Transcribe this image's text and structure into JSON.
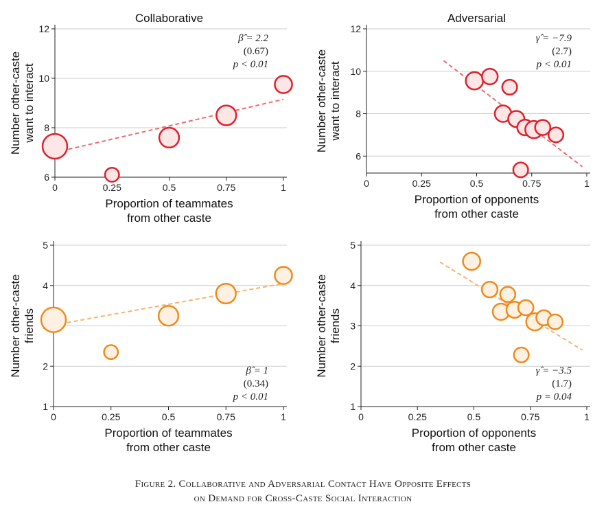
{
  "caption": {
    "line1": "Figure 2. Collaborative and Adversarial Contact Have Opposite Effects",
    "line2": "on Demand for Cross-Caste Social Interaction"
  },
  "colors": {
    "red": "#e0202a",
    "red_line": "#ee6a6e",
    "red_fill": "#fde6e6",
    "orange": "#f08a1c",
    "orange_line": "#f6b26b",
    "orange_fill": "#fff1e2",
    "grid": "#cccccc"
  },
  "chart_data": [
    {
      "type": "scatter",
      "title": "Collaborative",
      "xlabel": [
        "Proportion of teammates",
        "from other caste"
      ],
      "ylabel": [
        "Number other-caste",
        "want to interact"
      ],
      "xlim": [
        0,
        1
      ],
      "ylim": [
        6,
        12
      ],
      "xticks": [
        "0",
        "0.25",
        "0.5",
        "0.75",
        "1"
      ],
      "xtick_values": [
        0,
        0.25,
        0.5,
        0.75,
        1
      ],
      "yticks": [
        "6",
        "8",
        "10",
        "12"
      ],
      "ytick_values": [
        6,
        8,
        10,
        12
      ],
      "grid": true,
      "color": "red",
      "points": [
        {
          "x": 0,
          "y": 7.25,
          "size": 1.0
        },
        {
          "x": 0.25,
          "y": 6.1,
          "size": 0.35
        },
        {
          "x": 0.5,
          "y": 7.6,
          "size": 0.7
        },
        {
          "x": 0.75,
          "y": 8.5,
          "size": 0.7
        },
        {
          "x": 1,
          "y": 9.75,
          "size": 0.55
        }
      ],
      "fit": {
        "x": [
          0,
          1
        ],
        "y": [
          7.0,
          9.15
        ]
      },
      "stats": {
        "label": "β̂ = 2.2",
        "se": "(0.67)",
        "p": "p < 0.01",
        "position": "top-right"
      }
    },
    {
      "type": "scatter",
      "title": "Adversarial",
      "xlabel": [
        "Proportion of opponents",
        "from other caste"
      ],
      "ylabel": [
        "Number other-caste",
        "want to interact"
      ],
      "xlim": [
        0,
        1
      ],
      "ylim": [
        5.2,
        12
      ],
      "xticks": [
        "0",
        "0.25",
        "0.5",
        "0.75",
        "1"
      ],
      "xtick_values": [
        0,
        0.25,
        0.5,
        0.75,
        1
      ],
      "yticks": [
        "6",
        "8",
        "10",
        "12"
      ],
      "ytick_values": [
        6,
        8,
        10,
        12
      ],
      "grid": true,
      "color": "red",
      "points": [
        {
          "x": 0.49,
          "y": 9.55,
          "size": 0.55
        },
        {
          "x": 0.56,
          "y": 9.75,
          "size": 0.45
        },
        {
          "x": 0.65,
          "y": 9.25,
          "size": 0.4
        },
        {
          "x": 0.62,
          "y": 8.0,
          "size": 0.5
        },
        {
          "x": 0.68,
          "y": 7.75,
          "size": 0.48
        },
        {
          "x": 0.72,
          "y": 7.35,
          "size": 0.45
        },
        {
          "x": 0.76,
          "y": 7.25,
          "size": 0.55
        },
        {
          "x": 0.8,
          "y": 7.35,
          "size": 0.42
        },
        {
          "x": 0.86,
          "y": 7.0,
          "size": 0.4
        },
        {
          "x": 0.7,
          "y": 5.35,
          "size": 0.4
        }
      ],
      "fit": {
        "x": [
          0.35,
          0.98
        ],
        "y": [
          10.5,
          5.5
        ]
      },
      "stats": {
        "label": "γ̂ = −7.9",
        "se": "(2.7)",
        "p": "p < 0.01",
        "position": "top-right"
      }
    },
    {
      "type": "scatter",
      "title": "",
      "xlabel": [
        "Proportion of teammates",
        "from other caste"
      ],
      "ylabel": [
        "Number other-caste",
        "friends"
      ],
      "xlim": [
        0,
        1
      ],
      "ylim": [
        1,
        5
      ],
      "xticks": [
        "0",
        "0.25",
        "0.5",
        "0.75",
        "1"
      ],
      "xtick_values": [
        0,
        0.25,
        0.5,
        0.75,
        1
      ],
      "yticks": [
        "1",
        "2",
        "3",
        "4",
        "5"
      ],
      "ytick_values": [
        1,
        2,
        3,
        4,
        5
      ],
      "grid": true,
      "color": "orange",
      "points": [
        {
          "x": 0,
          "y": 3.15,
          "size": 1.0
        },
        {
          "x": 0.25,
          "y": 2.35,
          "size": 0.35
        },
        {
          "x": 0.5,
          "y": 3.25,
          "size": 0.7
        },
        {
          "x": 0.75,
          "y": 3.8,
          "size": 0.7
        },
        {
          "x": 1,
          "y": 4.25,
          "size": 0.55
        }
      ],
      "fit": {
        "x": [
          0,
          1
        ],
        "y": [
          3.02,
          4.05
        ]
      },
      "stats": {
        "label": "β̂ = 1",
        "se": "(0.34)",
        "p": "p < 0.01",
        "position": "bottom-right"
      }
    },
    {
      "type": "scatter",
      "title": "",
      "xlabel": [
        "Proportion of opponents",
        "from other caste"
      ],
      "ylabel": [
        "Number other-caste",
        "friends"
      ],
      "xlim": [
        0,
        1
      ],
      "ylim": [
        1,
        5
      ],
      "xticks": [
        "0",
        "0.25",
        "0.5",
        "0.75",
        "1"
      ],
      "xtick_values": [
        0,
        0.25,
        0.5,
        0.75,
        1
      ],
      "yticks": [
        "1",
        "2",
        "3",
        "4",
        "5"
      ],
      "ytick_values": [
        1,
        2,
        3,
        4,
        5
      ],
      "grid": true,
      "color": "orange",
      "points": [
        {
          "x": 0.49,
          "y": 4.6,
          "size": 0.55
        },
        {
          "x": 0.57,
          "y": 3.9,
          "size": 0.45
        },
        {
          "x": 0.65,
          "y": 3.78,
          "size": 0.42
        },
        {
          "x": 0.62,
          "y": 3.35,
          "size": 0.5
        },
        {
          "x": 0.68,
          "y": 3.4,
          "size": 0.48
        },
        {
          "x": 0.73,
          "y": 3.45,
          "size": 0.42
        },
        {
          "x": 0.77,
          "y": 3.1,
          "size": 0.55
        },
        {
          "x": 0.81,
          "y": 3.2,
          "size": 0.42
        },
        {
          "x": 0.86,
          "y": 3.1,
          "size": 0.4
        },
        {
          "x": 0.71,
          "y": 2.28,
          "size": 0.4
        }
      ],
      "fit": {
        "x": [
          0.35,
          0.98
        ],
        "y": [
          4.58,
          2.4
        ]
      },
      "stats": {
        "label": "γ̂ = −3.5",
        "se": "(1.7)",
        "p": "p = 0.04",
        "position": "bottom-right"
      }
    }
  ]
}
